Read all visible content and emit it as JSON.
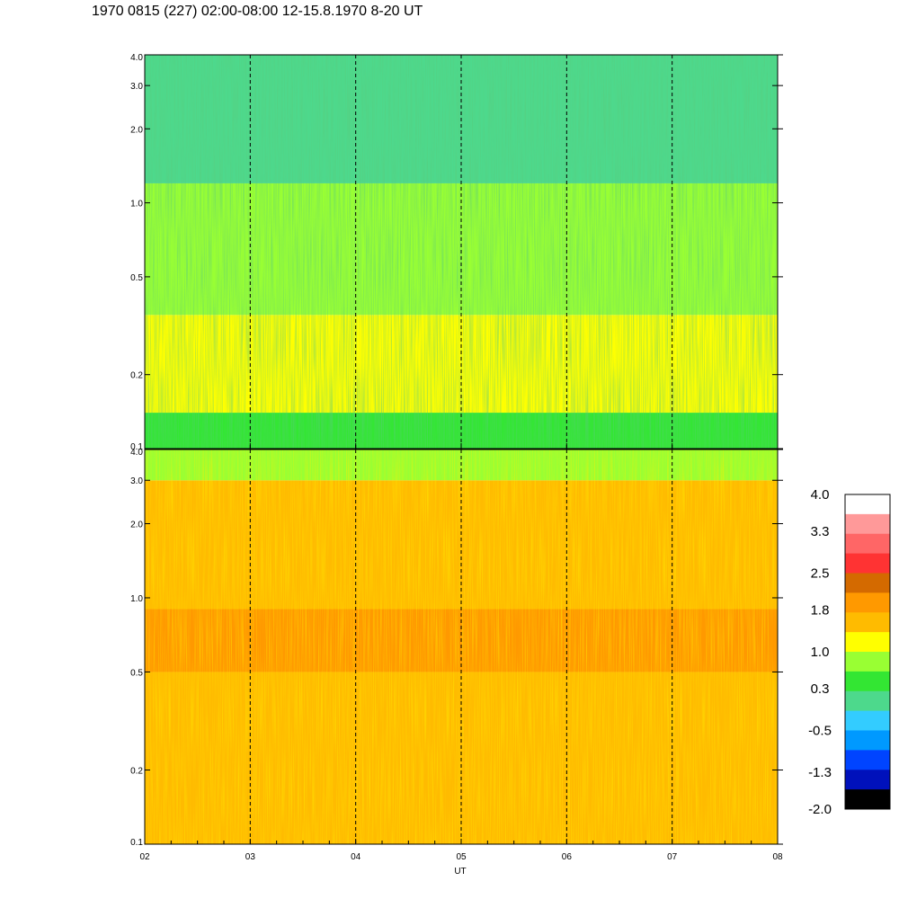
{
  "title": "1970 0815 (227) 02:00-08:00 12-15.8.1970  8-20 UT",
  "chart_data": {
    "type": "heatmap",
    "title": "1970 0815 (227) 02:00-08:00 12-15.8.1970  8-20 UT",
    "xlabel": "UT",
    "x_range": [
      2,
      8
    ],
    "x_ticks": [
      "02",
      "03",
      "04",
      "05",
      "06",
      "07",
      "08"
    ],
    "x_tick_values": [
      2,
      3,
      4,
      5,
      6,
      7,
      8
    ],
    "dashed_verticals": [
      3,
      4,
      5,
      6,
      7
    ],
    "panels": [
      {
        "name": "upper",
        "y_scale": "log",
        "y_range": [
          0.1,
          4.0
        ],
        "y_ticks": [
          "0.1",
          "0.2",
          "0.5",
          "1.0",
          "2.0",
          "3.0",
          "4.0"
        ],
        "y_tick_values": [
          0.1,
          0.2,
          0.5,
          1.0,
          2.0,
          3.0,
          4.0
        ],
        "dominant_level_by_band": [
          {
            "y_from": 0.1,
            "y_to": 0.14,
            "level": 0.5
          },
          {
            "y_from": 0.14,
            "y_to": 0.35,
            "level": 1.1
          },
          {
            "y_from": 0.35,
            "y_to": 1.2,
            "level": 0.8
          },
          {
            "y_from": 1.2,
            "y_to": 4.0,
            "level": 0.2
          }
        ]
      },
      {
        "name": "lower",
        "y_scale": "log",
        "y_range": [
          0.1,
          4.0
        ],
        "y_ticks": [
          "0.1",
          "0.2",
          "0.5",
          "1.0",
          "2.0",
          "3.0",
          "4.0"
        ],
        "y_tick_values": [
          0.1,
          0.2,
          0.5,
          1.0,
          2.0,
          3.0,
          4.0
        ],
        "dominant_level_by_band": [
          {
            "y_from": 0.1,
            "y_to": 0.5,
            "level": 1.6
          },
          {
            "y_from": 0.5,
            "y_to": 0.9,
            "level": 2.0
          },
          {
            "y_from": 0.9,
            "y_to": 3.0,
            "level": 1.6
          },
          {
            "y_from": 3.0,
            "y_to": 4.0,
            "level": 1.0
          }
        ]
      }
    ],
    "colorbar": {
      "labels": [
        "4.0",
        "3.3",
        "2.5",
        "1.8",
        "1.0",
        "0.3",
        "-0.5",
        "-1.3",
        "-2.0"
      ],
      "label_values": [
        4.0,
        3.3,
        2.5,
        1.8,
        1.0,
        0.3,
        -0.5,
        -1.3,
        -2.0
      ],
      "range": [
        -2.0,
        4.0
      ],
      "colors_top_to_bottom": [
        "#ffffff",
        "#ff9999",
        "#ff6666",
        "#ff3333",
        "#d46a00",
        "#ff9900",
        "#ffbb00",
        "#ffff00",
        "#99ff33",
        "#33e633",
        "#4dd98c",
        "#33ccff",
        "#0099ff",
        "#0044ff",
        "#0011bb",
        "#000000"
      ]
    },
    "grid": false,
    "legend": "colorbar-right"
  }
}
